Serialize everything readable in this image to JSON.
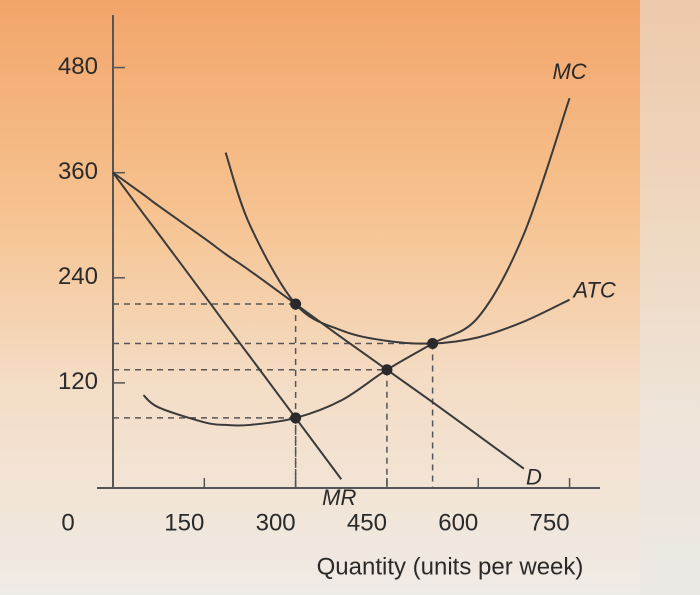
{
  "chart_data": {
    "type": "line",
    "x_label": "Quantity (units per week)",
    "x": [
      0,
      50,
      75,
      150,
      185,
      225,
      300,
      375,
      450,
      525,
      600,
      675,
      750
    ],
    "series": [
      {
        "name": "D",
        "color": "#3a3a3a",
        "values": [
          360,
          335,
          322,
          285,
          267,
          248,
          210,
          172,
          135,
          98,
          60,
          22,
          null
        ]
      },
      {
        "name": "MR",
        "color": "#3a3a3a",
        "values": [
          360,
          313,
          290,
          220,
          187,
          150,
          80,
          10,
          null,
          null,
          null,
          null,
          null
        ]
      },
      {
        "name": "MC",
        "color": "#3a3a3a",
        "values": [
          null,
          106,
          92,
          75,
          72,
          72,
          80,
          100,
          135,
          165,
          195,
          290,
          445
        ]
      },
      {
        "name": "ATC",
        "color": "#3a3a3a",
        "values": [
          null,
          null,
          null,
          null,
          383,
          300,
          210,
          180,
          168,
          165,
          172,
          190,
          215
        ]
      }
    ],
    "points": [
      {
        "x": 300,
        "y": 210
      },
      {
        "x": 300,
        "y": 80
      },
      {
        "x": 450,
        "y": 135
      },
      {
        "x": 525,
        "y": 165
      }
    ],
    "xlim": [
      0,
      800
    ],
    "ylim": [
      0,
      540
    ],
    "xticks": [
      0,
      150,
      300,
      450,
      600,
      750
    ],
    "yticks": [
      120,
      240,
      360,
      480
    ],
    "grid": false
  }
}
